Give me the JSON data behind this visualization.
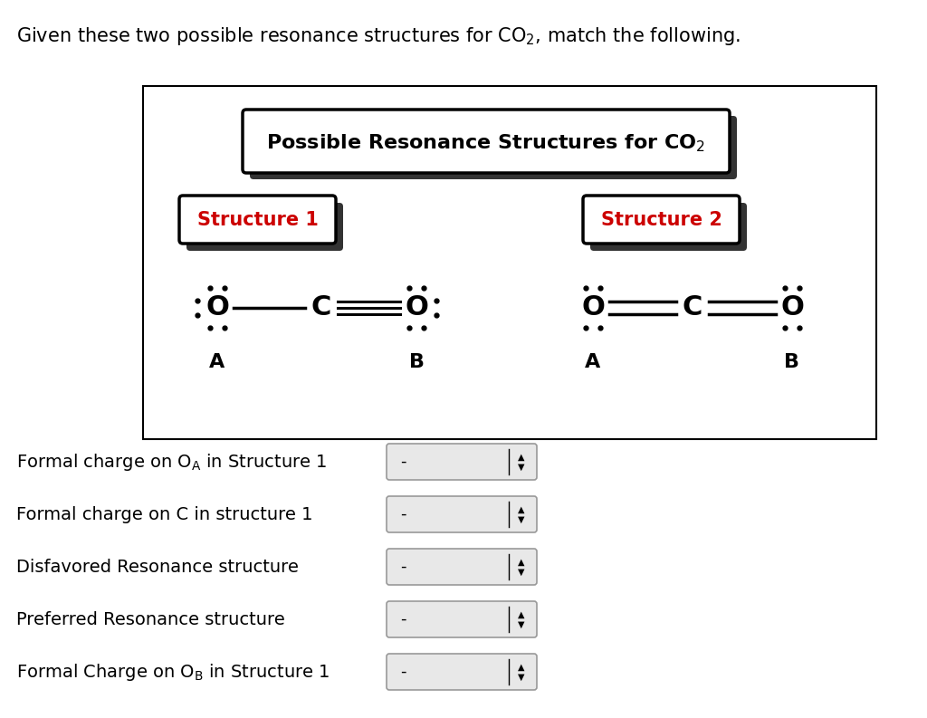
{
  "bg_color": "#ffffff",
  "box_color": "#000000",
  "label_color": "#cc0000",
  "struct1_label": "Structure 1",
  "struct2_label": "Structure 2",
  "questions": [
    [
      "Formal charge on O",
      "A",
      " in Structure 1"
    ],
    [
      "Formal charge on C in structure 1",
      "",
      ""
    ],
    [
      "Disfavored Resonance structure",
      "",
      ""
    ],
    [
      "Preferred Resonance structure",
      "",
      ""
    ],
    [
      "Formal Charge on O",
      "B",
      " in Structure 1"
    ]
  ]
}
